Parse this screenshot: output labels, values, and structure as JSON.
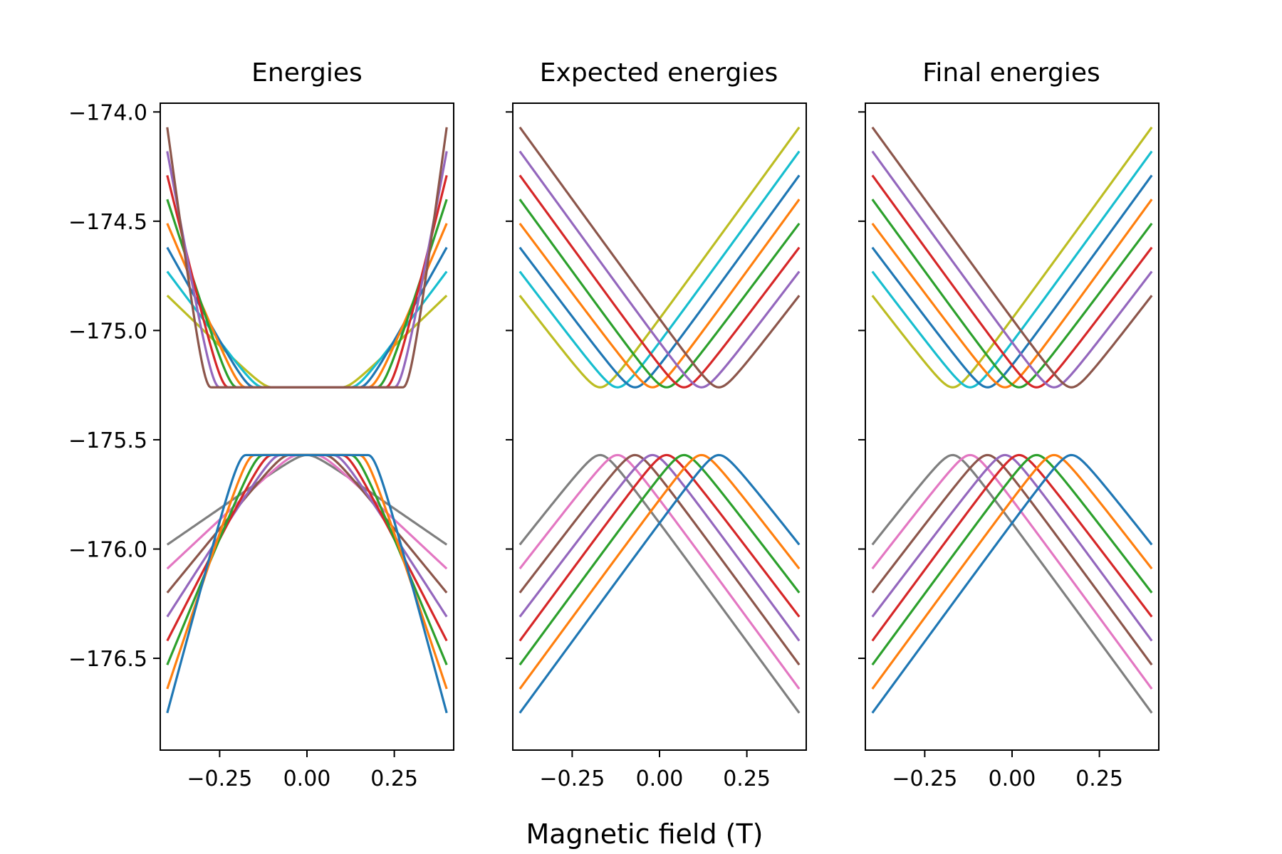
{
  "chart_data": [
    {
      "type": "line",
      "title": "Energies",
      "xlim": [
        -0.42,
        0.42
      ],
      "ylim": [
        -176.92,
        -173.96
      ],
      "x_ticks": [
        -0.25,
        0.0,
        0.25
      ],
      "x_tick_labels": [
        "−0.25",
        "0.00",
        "0.25"
      ],
      "y_ticks": [
        -174.0,
        -174.5,
        -175.0,
        -175.5,
        -176.0,
        -176.5
      ],
      "y_tick_labels": [
        "−174.0",
        "−174.5",
        "−175.0",
        "−175.5",
        "−176.0",
        "−176.5"
      ],
      "x_range": [
        -0.4,
        0.4
      ],
      "series": [
        {
          "color": "#bcbd22",
          "band": "upper",
          "base": -175.26,
          "level": 4,
          "mode": "symmetric",
          "edges": [
            -174.84,
            -174.84
          ]
        },
        {
          "color": "#17becf",
          "band": "upper",
          "base": -175.26,
          "level": 5,
          "mode": "symmetric",
          "edges": [
            -174.73,
            -174.73
          ]
        },
        {
          "color": "#1f77b4",
          "band": "upper",
          "base": -175.26,
          "level": 6,
          "mode": "symmetric",
          "edges": [
            -174.62,
            -174.62
          ]
        },
        {
          "color": "#ff7f0e",
          "band": "upper",
          "base": -175.26,
          "level": 7,
          "mode": "symmetric",
          "edges": [
            -174.51,
            -174.51
          ]
        },
        {
          "color": "#2ca02c",
          "band": "upper",
          "base": -175.26,
          "level": 8,
          "mode": "symmetric",
          "edges": [
            -174.4,
            -174.4
          ]
        },
        {
          "color": "#d62728",
          "band": "upper",
          "base": -175.26,
          "level": 9,
          "mode": "symmetric",
          "edges": [
            -174.29,
            -174.29
          ]
        },
        {
          "color": "#9467bd",
          "band": "upper",
          "base": -175.26,
          "level": 10,
          "mode": "symmetric",
          "edges": [
            -174.18,
            -174.18
          ]
        },
        {
          "color": "#8c564b",
          "band": "upper",
          "base": -175.26,
          "level": 11,
          "mode": "symmetric",
          "edges": [
            -174.07,
            -174.07
          ]
        },
        {
          "color": "#7f7f7f",
          "band": "lower",
          "base": -175.57,
          "level": 0,
          "mode": "symmetric",
          "edges": [
            -175.98,
            -175.98
          ]
        },
        {
          "color": "#e377c2",
          "band": "lower",
          "base": -175.57,
          "level": 1,
          "mode": "symmetric",
          "edges": [
            -176.09,
            -176.09
          ]
        },
        {
          "color": "#8c564b",
          "band": "lower",
          "base": -175.57,
          "level": 2,
          "mode": "symmetric",
          "edges": [
            -176.2,
            -176.2
          ]
        },
        {
          "color": "#9467bd",
          "band": "lower",
          "base": -175.57,
          "level": 3,
          "mode": "symmetric",
          "edges": [
            -176.31,
            -176.31
          ]
        },
        {
          "color": "#d62728",
          "band": "lower",
          "base": -175.57,
          "level": 4,
          "mode": "symmetric",
          "edges": [
            -176.42,
            -176.42
          ]
        },
        {
          "color": "#2ca02c",
          "band": "lower",
          "base": -175.57,
          "level": 5,
          "mode": "symmetric",
          "edges": [
            -176.53,
            -176.53
          ]
        },
        {
          "color": "#ff7f0e",
          "band": "lower",
          "base": -175.57,
          "level": 6,
          "mode": "symmetric",
          "edges": [
            -176.64,
            -176.64
          ]
        },
        {
          "color": "#1f77b4",
          "band": "lower",
          "base": -175.57,
          "level": 7,
          "mode": "symmetric",
          "edges": [
            -176.75,
            -176.75
          ]
        }
      ]
    },
    {
      "type": "line",
      "title": "Expected energies",
      "xlim": [
        -0.42,
        0.42
      ],
      "ylim": [
        -176.92,
        -173.96
      ],
      "x_ticks": [
        -0.25,
        0.0,
        0.25
      ],
      "x_tick_labels": [
        "−0.25",
        "0.00",
        "0.25"
      ],
      "y_ticks": [
        -174.0,
        -174.5,
        -175.0,
        -175.5,
        -176.0,
        -176.5
      ],
      "x_range": [
        -0.4,
        0.4
      ],
      "series": [
        {
          "color": "#bcbd22",
          "band": "upper",
          "base": -175.26,
          "center": -0.17,
          "mode": "shifted",
          "edges": [
            -174.84,
            -174.07
          ]
        },
        {
          "color": "#17becf",
          "band": "upper",
          "base": -175.26,
          "center": -0.12,
          "mode": "shifted",
          "edges": [
            -174.73,
            -174.18
          ]
        },
        {
          "color": "#1f77b4",
          "band": "upper",
          "base": -175.26,
          "center": -0.07,
          "mode": "shifted",
          "edges": [
            -174.62,
            -174.29
          ]
        },
        {
          "color": "#ff7f0e",
          "band": "upper",
          "base": -175.26,
          "center": -0.02,
          "mode": "shifted",
          "edges": [
            -174.51,
            -174.4
          ]
        },
        {
          "color": "#2ca02c",
          "band": "upper",
          "base": -175.26,
          "center": 0.02,
          "mode": "shifted",
          "edges": [
            -174.4,
            -174.51
          ]
        },
        {
          "color": "#d62728",
          "band": "upper",
          "base": -175.26,
          "center": 0.07,
          "mode": "shifted",
          "edges": [
            -174.29,
            -174.62
          ]
        },
        {
          "color": "#9467bd",
          "band": "upper",
          "base": -175.26,
          "center": 0.12,
          "mode": "shifted",
          "edges": [
            -174.18,
            -174.73
          ]
        },
        {
          "color": "#8c564b",
          "band": "upper",
          "base": -175.26,
          "center": 0.17,
          "mode": "shifted",
          "edges": [
            -174.07,
            -174.84
          ]
        },
        {
          "color": "#7f7f7f",
          "band": "lower",
          "base": -175.57,
          "center": -0.17,
          "mode": "shifted",
          "edges": [
            -175.98,
            -176.75
          ]
        },
        {
          "color": "#e377c2",
          "band": "lower",
          "base": -175.57,
          "center": -0.12,
          "mode": "shifted",
          "edges": [
            -176.09,
            -176.64
          ]
        },
        {
          "color": "#8c564b",
          "band": "lower",
          "base": -175.57,
          "center": -0.07,
          "mode": "shifted",
          "edges": [
            -176.2,
            -176.53
          ]
        },
        {
          "color": "#9467bd",
          "band": "lower",
          "base": -175.57,
          "center": -0.02,
          "mode": "shifted",
          "edges": [
            -176.31,
            -176.42
          ]
        },
        {
          "color": "#d62728",
          "band": "lower",
          "base": -175.57,
          "center": 0.02,
          "mode": "shifted",
          "edges": [
            -176.42,
            -176.31
          ]
        },
        {
          "color": "#2ca02c",
          "band": "lower",
          "base": -175.57,
          "center": 0.07,
          "mode": "shifted",
          "edges": [
            -176.53,
            -176.2
          ]
        },
        {
          "color": "#ff7f0e",
          "band": "lower",
          "base": -175.57,
          "center": 0.12,
          "mode": "shifted",
          "edges": [
            -176.64,
            -176.09
          ]
        },
        {
          "color": "#1f77b4",
          "band": "lower",
          "base": -175.57,
          "center": 0.17,
          "mode": "shifted",
          "edges": [
            -176.75,
            -175.98
          ]
        }
      ]
    },
    {
      "type": "line",
      "title": "Final energies",
      "xlim": [
        -0.42,
        0.42
      ],
      "ylim": [
        -176.92,
        -173.96
      ],
      "x_ticks": [
        -0.25,
        0.0,
        0.25
      ],
      "x_tick_labels": [
        "−0.25",
        "0.00",
        "0.25"
      ],
      "y_ticks": [
        -174.0,
        -174.5,
        -175.0,
        -175.5,
        -176.0,
        -176.5
      ],
      "x_range": [
        -0.4,
        0.4
      ],
      "series": [
        {
          "color": "#bcbd22",
          "band": "upper",
          "base": -175.26,
          "center": -0.17,
          "mode": "shifted",
          "edges": [
            -174.84,
            -174.07
          ]
        },
        {
          "color": "#17becf",
          "band": "upper",
          "base": -175.26,
          "center": -0.12,
          "mode": "shifted",
          "edges": [
            -174.73,
            -174.18
          ]
        },
        {
          "color": "#1f77b4",
          "band": "upper",
          "base": -175.26,
          "center": -0.07,
          "mode": "shifted",
          "edges": [
            -174.62,
            -174.29
          ]
        },
        {
          "color": "#ff7f0e",
          "band": "upper",
          "base": -175.26,
          "center": -0.02,
          "mode": "shifted",
          "edges": [
            -174.51,
            -174.4
          ]
        },
        {
          "color": "#2ca02c",
          "band": "upper",
          "base": -175.26,
          "center": 0.02,
          "mode": "shifted",
          "edges": [
            -174.4,
            -174.51
          ]
        },
        {
          "color": "#d62728",
          "band": "upper",
          "base": -175.26,
          "center": 0.07,
          "mode": "shifted",
          "edges": [
            -174.29,
            -174.62
          ]
        },
        {
          "color": "#9467bd",
          "band": "upper",
          "base": -175.26,
          "center": 0.12,
          "mode": "shifted",
          "edges": [
            -174.18,
            -174.73
          ]
        },
        {
          "color": "#8c564b",
          "band": "upper",
          "base": -175.26,
          "center": 0.17,
          "mode": "shifted",
          "edges": [
            -174.07,
            -174.84
          ]
        },
        {
          "color": "#7f7f7f",
          "band": "lower",
          "base": -175.57,
          "center": -0.17,
          "mode": "shifted",
          "edges": [
            -175.98,
            -176.75
          ]
        },
        {
          "color": "#e377c2",
          "band": "lower",
          "base": -175.57,
          "center": -0.12,
          "mode": "shifted",
          "edges": [
            -176.09,
            -176.64
          ]
        },
        {
          "color": "#8c564b",
          "band": "lower",
          "base": -175.57,
          "center": -0.07,
          "mode": "shifted",
          "edges": [
            -176.2,
            -176.53
          ]
        },
        {
          "color": "#9467bd",
          "band": "lower",
          "base": -175.57,
          "center": -0.02,
          "mode": "shifted",
          "edges": [
            -176.31,
            -176.42
          ]
        },
        {
          "color": "#d62728",
          "band": "lower",
          "base": -175.57,
          "center": 0.02,
          "mode": "shifted",
          "edges": [
            -176.42,
            -176.31
          ]
        },
        {
          "color": "#2ca02c",
          "band": "lower",
          "base": -175.57,
          "center": 0.07,
          "mode": "shifted",
          "edges": [
            -176.53,
            -176.2
          ]
        },
        {
          "color": "#ff7f0e",
          "band": "lower",
          "base": -175.57,
          "center": 0.12,
          "mode": "shifted",
          "edges": [
            -176.64,
            -176.09
          ]
        },
        {
          "color": "#1f77b4",
          "band": "lower",
          "base": -175.57,
          "center": 0.17,
          "mode": "shifted",
          "edges": [
            -176.75,
            -175.98
          ]
        }
      ]
    }
  ],
  "figure": {
    "xlabel": "Magnetic field (T)",
    "sharey": true,
    "grid": false,
    "legend": "none"
  }
}
